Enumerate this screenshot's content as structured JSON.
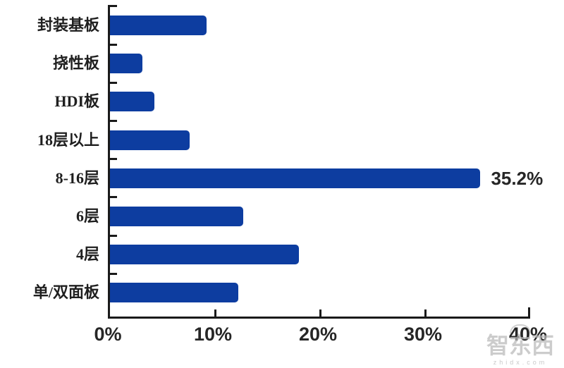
{
  "chart_data": {
    "type": "bar",
    "orientation": "horizontal",
    "title": "",
    "xlabel": "",
    "ylabel": "",
    "categories": [
      "封装基板",
      "挠性板",
      "HDI板",
      "18层以上",
      "8-16层",
      "6层",
      "4层",
      "单/双面板"
    ],
    "values": [
      9.2,
      3.1,
      4.2,
      7.6,
      35.2,
      12.7,
      18.0,
      12.2
    ],
    "point_labels": [
      "",
      "",
      "",
      "",
      "35.2%",
      "",
      "",
      ""
    ],
    "x_tick_labels": [
      "0%",
      "10%",
      "20%",
      "30%",
      "40%"
    ],
    "xlim": [
      0,
      40
    ],
    "grid": false,
    "legend": false,
    "bar_color": "#0d3da0",
    "axis_color": "#1a1a1a",
    "text_color": "#262626"
  },
  "watermark": {
    "brand": "智东西",
    "domain": "zhidx.com"
  }
}
